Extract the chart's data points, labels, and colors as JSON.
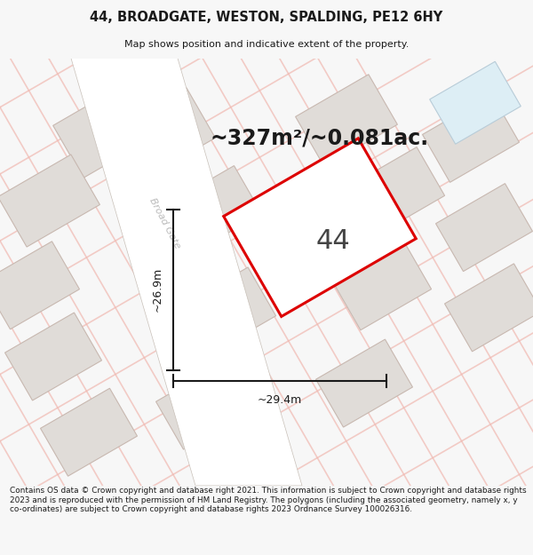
{
  "title": "44, BROADGATE, WESTON, SPALDING, PE12 6HY",
  "subtitle": "Map shows position and indicative extent of the property.",
  "area_text": "~327m²/~0.081ac.",
  "house_number": "44",
  "width_label": "~29.4m",
  "height_label": "~26.9m",
  "road_label": "Broad Gate",
  "footer": "Contains OS data © Crown copyright and database right 2021. This information is subject to Crown copyright and database rights 2023 and is reproduced with the permission of HM Land Registry. The polygons (including the associated geometry, namely x, y co-ordinates) are subject to Crown copyright and database rights 2023 Ordnance Survey 100026316.",
  "bg_color": "#f7f7f7",
  "map_bg": "#f2f0ee",
  "property_outline_color": "#dd0000",
  "dim_line_color": "#1a1a1a",
  "title_color": "#1a1a1a",
  "footer_color": "#1a1a1a",
  "road_label_color": "#bbbbbb",
  "area_text_color": "#1a1a1a",
  "house_number_color": "#444444",
  "building_fill": "#e0dcd8",
  "building_edge": "#c8b8b0",
  "road_line_color": "#f0b8b0",
  "road_line_color2": "#c8c0b8"
}
